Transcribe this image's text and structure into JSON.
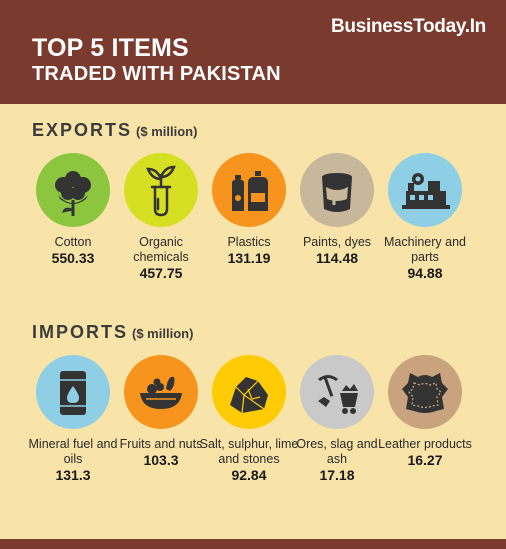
{
  "brand": "BusinessToday.In",
  "title": {
    "line1": "TOP 5 ITEMS",
    "line2": "TRADED WITH PAKISTAN"
  },
  "exports": {
    "heading": "EXPORTS",
    "unit": "($ million)",
    "items": [
      {
        "label": "Cotton",
        "value": "550.33",
        "icon": "cotton-icon",
        "color": "#8cc63f"
      },
      {
        "label": "Organic chemicals",
        "value": "457.75",
        "icon": "test-tube-sprout-icon",
        "color": "#d7df23"
      },
      {
        "label": "Plastics",
        "value": "131.19",
        "icon": "plastic-bottles-icon",
        "color": "#f7941d"
      },
      {
        "label": "Paints, dyes",
        "value": "114.48",
        "icon": "paint-bucket-icon",
        "color": "#c9b79c"
      },
      {
        "label": "Machinery and parts",
        "value": "94.88",
        "icon": "factory-machinery-icon",
        "color": "#8ecfe5"
      }
    ]
  },
  "imports": {
    "heading": "IMPORTS",
    "unit": "($ million)",
    "items": [
      {
        "label": "Mineral fuel and oils",
        "value": "131.3",
        "icon": "oil-barrel-icon",
        "color": "#8ecfe5"
      },
      {
        "label": "Fruits and nuts",
        "value": "103.3",
        "icon": "fruit-basket-icon",
        "color": "#f7941d"
      },
      {
        "label": "Salt, sulphur, lime and stones",
        "value": "92.84",
        "icon": "rock-stone-icon",
        "color": "#ffcb05"
      },
      {
        "label": "Ores, slag and ash",
        "value": "17.18",
        "icon": "mining-cart-icon",
        "color": "#c9c9c9"
      },
      {
        "label": "Leather products",
        "value": "16.27",
        "icon": "leather-hide-icon",
        "color": "#c9a27e"
      }
    ]
  },
  "colors": {
    "header": "#7b3a2e",
    "background": "#f8e3a8",
    "icon_ink": "#333333"
  }
}
